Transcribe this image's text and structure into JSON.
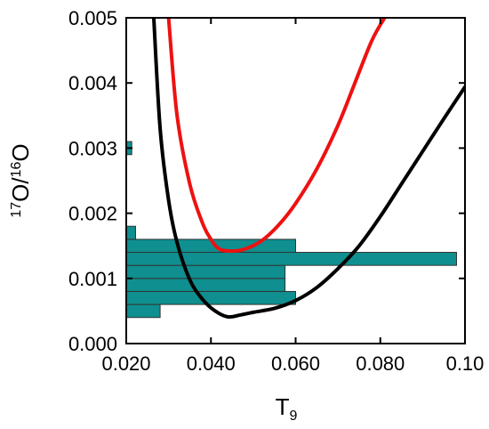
{
  "chart_data": {
    "type": "line",
    "title": "",
    "xlabel": {
      "main": "T",
      "sub": "9"
    },
    "ylabel": {
      "sup1": "17",
      "main1": "O/",
      "sup2": "16",
      "main2": "O"
    },
    "xlim": [
      0.02,
      0.1
    ],
    "ylim": [
      0.0,
      0.005
    ],
    "xticks": [
      {
        "value": 0.02,
        "label": "0.020"
      },
      {
        "value": 0.04,
        "label": "0.040"
      },
      {
        "value": 0.06,
        "label": "0.060"
      },
      {
        "value": 0.08,
        "label": "0.080"
      },
      {
        "value": 0.1,
        "label": "0.10"
      }
    ],
    "yticks": [
      {
        "value": 0.0,
        "label": "0.000"
      },
      {
        "value": 0.001,
        "label": "0.001"
      },
      {
        "value": 0.002,
        "label": "0.002"
      },
      {
        "value": 0.003,
        "label": "0.003"
      },
      {
        "value": 0.004,
        "label": "0.004"
      },
      {
        "value": 0.005,
        "label": "0.005"
      }
    ],
    "grid": false,
    "series": [
      {
        "color": "#000000",
        "x": [
          0.0265,
          0.028,
          0.03,
          0.032,
          0.035,
          0.038,
          0.041,
          0.044,
          0.047,
          0.05,
          0.055,
          0.06,
          0.065,
          0.07,
          0.075,
          0.08,
          0.085,
          0.09,
          0.095,
          0.1
        ],
        "y": [
          0.005,
          0.0033,
          0.0022,
          0.00155,
          0.00098,
          0.00068,
          0.0005,
          0.00041,
          0.00044,
          0.00048,
          0.00054,
          0.00066,
          0.00086,
          0.00115,
          0.0015,
          0.00195,
          0.00245,
          0.00295,
          0.00345,
          0.00394
        ]
      },
      {
        "color": "#ee1111",
        "x": [
          0.03,
          0.032,
          0.035,
          0.038,
          0.04,
          0.042,
          0.045,
          0.048,
          0.052,
          0.056,
          0.06,
          0.065,
          0.07,
          0.074,
          0.078,
          0.081
        ],
        "y": [
          0.005,
          0.0035,
          0.00245,
          0.00185,
          0.0016,
          0.00145,
          0.00142,
          0.00145,
          0.00158,
          0.00182,
          0.00215,
          0.00268,
          0.00335,
          0.004,
          0.00465,
          0.005
        ]
      }
    ],
    "histogram": {
      "color": "#0f8f8f",
      "bins": [
        {
          "y0": 0.0004,
          "y1": 0.0006,
          "x": 0.028
        },
        {
          "y0": 0.0006,
          "y1": 0.0008,
          "x": 0.06
        },
        {
          "y0": 0.0008,
          "y1": 0.001,
          "x": 0.0575
        },
        {
          "y0": 0.001,
          "y1": 0.0012,
          "x": 0.0575
        },
        {
          "y0": 0.0012,
          "y1": 0.0014,
          "x": 0.098
        },
        {
          "y0": 0.0014,
          "y1": 0.0016,
          "x": 0.06
        },
        {
          "y0": 0.0016,
          "y1": 0.0018,
          "x": 0.0222
        },
        {
          "y0": 0.0029,
          "y1": 0.0031,
          "x": 0.0213
        }
      ]
    }
  }
}
